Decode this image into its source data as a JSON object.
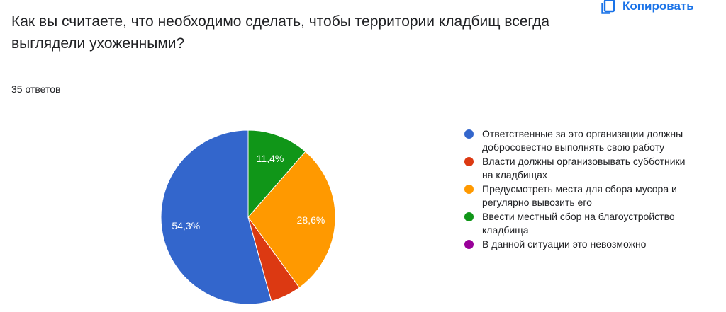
{
  "header": {
    "copy_label": "Копировать"
  },
  "question": {
    "text": "Как вы считаете, что необходимо сделать, чтобы территории кладбищ всегда выглядели ухоженными?",
    "responses": "35 ответов"
  },
  "colors": {
    "accent": "#1a73e8"
  },
  "chart_data": {
    "type": "pie",
    "start_angle_deg": 90,
    "direction": "counterclockwise",
    "slices": [
      {
        "label": "Ответственные за это организации должны добросовестно выполнять свою работу",
        "value": 54.3,
        "display": "54,3%",
        "color": "#3366cc"
      },
      {
        "label": "Власти должны организовывать субботники на кладбищах",
        "value": 5.7,
        "display": "",
        "color": "#dc3912"
      },
      {
        "label": "Предусмотреть места для сбора мусора и регулярно вывозить его",
        "value": 28.6,
        "display": "28,6%",
        "color": "#ff9900"
      },
      {
        "label": "Ввести местный сбор на благоустройство кладбища",
        "value": 11.4,
        "display": "11,4%",
        "color": "#109618"
      },
      {
        "label": "В данной ситуации это невозможно",
        "value": 0,
        "display": "",
        "color": "#990099"
      }
    ]
  }
}
